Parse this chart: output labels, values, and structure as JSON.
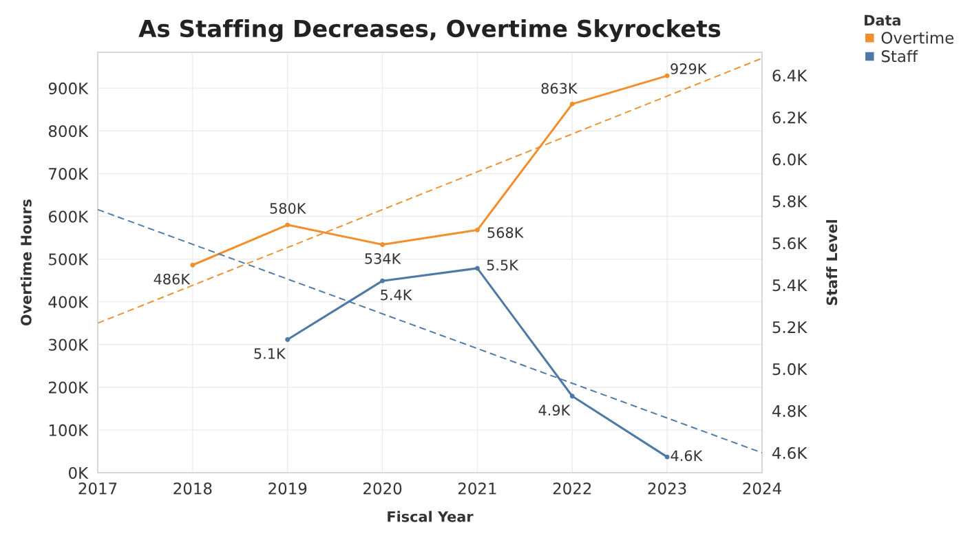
{
  "chart_data": {
    "type": "line",
    "title": "As Staffing Decreases, Overtime Skyrockets",
    "xlabel": "Fiscal Year",
    "ylabel": "Overtime Hours",
    "y2label": "Staff Level",
    "legend_title": "Data",
    "xlim": [
      2017,
      2024
    ],
    "xticks": [
      2017,
      2018,
      2019,
      2020,
      2021,
      2022,
      2023,
      2024
    ],
    "ylim": [
      0,
      984000
    ],
    "yticks": [
      {
        "value": 0,
        "label": "0K"
      },
      {
        "value": 100000,
        "label": "100K"
      },
      {
        "value": 200000,
        "label": "200K"
      },
      {
        "value": 300000,
        "label": "300K"
      },
      {
        "value": 400000,
        "label": "400K"
      },
      {
        "value": 500000,
        "label": "500K"
      },
      {
        "value": 600000,
        "label": "600K"
      },
      {
        "value": 700000,
        "label": "700K"
      },
      {
        "value": 800000,
        "label": "800K"
      },
      {
        "value": 900000,
        "label": "900K"
      }
    ],
    "y2lim": [
      4505,
      6510
    ],
    "y2ticks": [
      {
        "value": 4600,
        "label": "4.6K"
      },
      {
        "value": 4800,
        "label": "4.8K"
      },
      {
        "value": 5000,
        "label": "5.0K"
      },
      {
        "value": 5200,
        "label": "5.2K"
      },
      {
        "value": 5400,
        "label": "5.4K"
      },
      {
        "value": 5600,
        "label": "5.6K"
      },
      {
        "value": 5800,
        "label": "5.8K"
      },
      {
        "value": 6000,
        "label": "6.0K"
      },
      {
        "value": 6200,
        "label": "6.2K"
      },
      {
        "value": 6400,
        "label": "6.4K"
      }
    ],
    "grid": true,
    "legend": "top right",
    "line_style": "solid",
    "series": [
      {
        "name": "Overtime",
        "color": "#f28e2b",
        "marker": "circle",
        "x": [
          2018,
          2019,
          2020,
          2021,
          2022,
          2023
        ],
        "values": [
          486000,
          580000,
          534000,
          568000,
          863000,
          929000
        ],
        "value_labels": [
          "486K",
          "580K",
          "534K",
          "568K",
          "863K",
          "929K"
        ]
      },
      {
        "name": "Staff",
        "color": "#4e79a7",
        "marker": "circle",
        "axis": "y2",
        "x": [
          2019,
          2020,
          2021,
          2022,
          2023
        ],
        "values": [
          5140,
          5420,
          5480,
          4870,
          4580
        ],
        "value_labels": [
          "5.1K",
          "5.4K",
          "5.5K",
          "4.9K",
          "4.6K"
        ]
      },
      {
        "color": "#f28e2b",
        "line_style": "dashed",
        "x": [
          2017,
          2024
        ],
        "values": [
          350000,
          970000
        ]
      },
      {
        "color": "#4e79a7",
        "line_style": "dashed",
        "axis": "y2",
        "x": [
          2017,
          2024
        ],
        "values": [
          5760,
          4600
        ]
      }
    ]
  }
}
